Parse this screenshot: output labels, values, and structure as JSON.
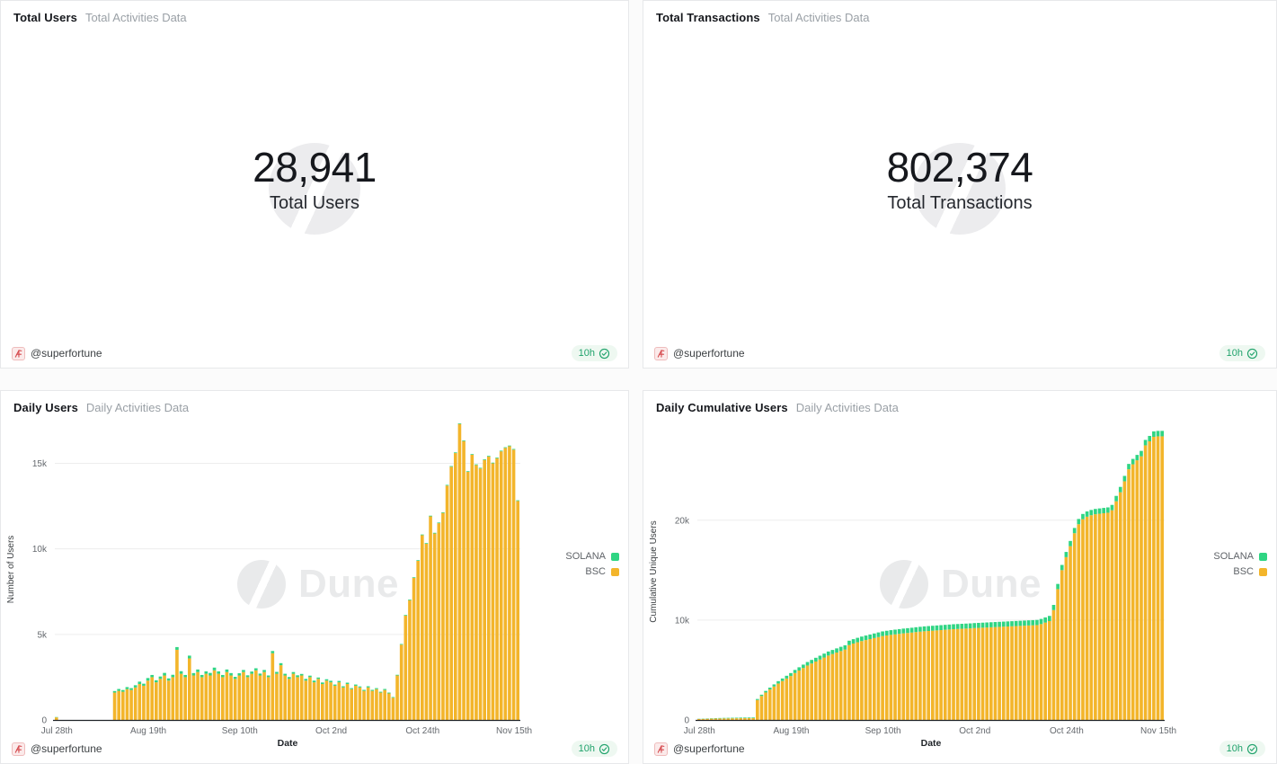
{
  "colors": {
    "bsc": "#F3B52B",
    "solana": "#2FD583",
    "badge_green": "#1FA26B",
    "gridline": "#EDEDED",
    "baseline": "#1F2328"
  },
  "watermark": {
    "text": "Dune"
  },
  "legend": [
    {
      "label": "SOLANA",
      "color": "#2FD583"
    },
    {
      "label": "BSC",
      "color": "#F3B52B"
    }
  ],
  "panels": {
    "total_users": {
      "title": "Total Users",
      "subtitle": "Total Activities Data",
      "value": "28,941",
      "value_label": "Total Users",
      "footer_user": "@superfortune",
      "badge": "10h"
    },
    "total_transactions": {
      "title": "Total Transactions",
      "subtitle": "Total Activities Data",
      "value": "802,374",
      "value_label": "Total Transactions",
      "footer_user": "@superfortune",
      "badge": "10h"
    },
    "daily_users": {
      "title": "Daily Users",
      "subtitle": "Daily Activities Data",
      "footer_user": "@superfortune",
      "badge": "10h"
    },
    "daily_cumulative": {
      "title": "Daily Cumulative Users",
      "subtitle": "Daily Activities Data",
      "footer_user": "@superfortune",
      "badge": "10h"
    }
  },
  "chart_data": [
    {
      "type": "counter",
      "title": "Total Users",
      "value": 28941
    },
    {
      "type": "counter",
      "title": "Total Transactions",
      "value": 802374
    },
    {
      "type": "bar",
      "stacked": true,
      "title": "Daily Users",
      "xlabel": "Date",
      "ylabel": "Number of Users",
      "yticks": [
        0,
        5000,
        10000,
        15000
      ],
      "ylim": [
        0,
        17600
      ],
      "grid": true,
      "legend_position": "right",
      "xtick_days": [
        0,
        22,
        44,
        66,
        88,
        110
      ],
      "xticklabels": [
        "Jul 28th",
        "Aug 19th",
        "Sep 10th",
        "Oct 2nd",
        "Oct 24th",
        "Nov 15th"
      ],
      "series": [
        {
          "name": "BSC",
          "values": [
            150,
            0,
            0,
            0,
            0,
            0,
            0,
            0,
            0,
            0,
            0,
            0,
            0,
            0,
            1600,
            1700,
            1650,
            1800,
            1750,
            1900,
            2100,
            2000,
            2300,
            2500,
            2200,
            2400,
            2600,
            2300,
            2500,
            4100,
            2700,
            2500,
            3600,
            2600,
            2800,
            2500,
            2700,
            2600,
            2900,
            2700,
            2500,
            2800,
            2600,
            2400,
            2600,
            2800,
            2500,
            2700,
            2900,
            2600,
            2800,
            2500,
            3900,
            2700,
            3200,
            2600,
            2400,
            2700,
            2500,
            2600,
            2300,
            2500,
            2200,
            2400,
            2100,
            2300,
            2200,
            2000,
            2200,
            1900,
            2100,
            1800,
            2000,
            1900,
            1700,
            1900,
            1700,
            1800,
            1600,
            1750,
            1550,
            1300,
            2600,
            4400,
            6100,
            7000,
            8300,
            9300,
            10800,
            10300,
            11900,
            10900,
            11500,
            12100,
            13700,
            14800,
            15600,
            17300,
            16300,
            14500,
            15500,
            14900,
            14700,
            15200,
            15400,
            15000,
            15300,
            15700,
            15900,
            16000,
            15800,
            12800
          ]
        },
        {
          "name": "SOLANA",
          "values": [
            20,
            0,
            0,
            0,
            0,
            0,
            0,
            0,
            0,
            0,
            0,
            0,
            0,
            0,
            90,
            110,
            100,
            120,
            110,
            130,
            140,
            120,
            150,
            130,
            120,
            140,
            150,
            130,
            140,
            160,
            150,
            130,
            160,
            140,
            150,
            130,
            140,
            150,
            160,
            140,
            130,
            150,
            140,
            120,
            130,
            120,
            110,
            130,
            120,
            110,
            120,
            100,
            130,
            110,
            120,
            100,
            110,
            100,
            110,
            90,
            100,
            90,
            100,
            80,
            90,
            80,
            90,
            70,
            80,
            70,
            80,
            60,
            70,
            60,
            60,
            70,
            60,
            60,
            50,
            60,
            50,
            40,
            40,
            40,
            40,
            40,
            40,
            40,
            40,
            40,
            40,
            40,
            40,
            40,
            40,
            40,
            40,
            40,
            40,
            40,
            40,
            40,
            40,
            40,
            40,
            40,
            40,
            40,
            40,
            40,
            40,
            40
          ]
        }
      ]
    },
    {
      "type": "bar",
      "stacked": true,
      "title": "Daily Cumulative Users",
      "xlabel": "Date",
      "ylabel": "Cumulative Unique Users",
      "yticks": [
        0,
        10000,
        20000
      ],
      "ylim": [
        0,
        29700
      ],
      "grid": true,
      "legend_position": "right",
      "xtick_days": [
        0,
        22,
        44,
        66,
        88,
        110
      ],
      "xticklabels": [
        "Jul 28th",
        "Aug 19th",
        "Sep 10th",
        "Oct 2nd",
        "Oct 24th",
        "Nov 15th"
      ],
      "series": [
        {
          "name": "BSC",
          "values": [
            100,
            110,
            120,
            130,
            140,
            150,
            155,
            160,
            165,
            170,
            175,
            180,
            185,
            190,
            2000,
            2400,
            2750,
            3050,
            3350,
            3650,
            3900,
            4150,
            4400,
            4700,
            4950,
            5200,
            5450,
            5650,
            5850,
            6050,
            6250,
            6450,
            6600,
            6750,
            6900,
            7050,
            7500,
            7650,
            7780,
            7900,
            8000,
            8100,
            8200,
            8300,
            8400,
            8460,
            8520,
            8570,
            8620,
            8670,
            8710,
            8750,
            8800,
            8840,
            8880,
            8910,
            8940,
            8970,
            9000,
            9030,
            9060,
            9090,
            9110,
            9130,
            9150,
            9170,
            9200,
            9220,
            9240,
            9260,
            9280,
            9300,
            9320,
            9340,
            9360,
            9380,
            9400,
            9420,
            9440,
            9460,
            9480,
            9500,
            9600,
            9750,
            9900,
            11000,
            13100,
            15000,
            16300,
            17400,
            18700,
            19600,
            20100,
            20350,
            20500,
            20600,
            20650,
            20700,
            20750,
            21000,
            21900,
            22800,
            23900,
            25100,
            25600,
            26000,
            26400,
            27500,
            27900,
            28350,
            28400,
            28400
          ]
        },
        {
          "name": "SOLANA",
          "values": [
            20,
            25,
            30,
            35,
            40,
            45,
            50,
            52,
            54,
            56,
            58,
            60,
            62,
            64,
            100,
            130,
            160,
            185,
            210,
            235,
            255,
            275,
            295,
            310,
            325,
            340,
            352,
            364,
            375,
            385,
            395,
            403,
            410,
            417,
            424,
            430,
            436,
            441,
            446,
            450,
            454,
            458,
            461,
            464,
            467,
            471,
            473,
            475,
            477,
            479,
            481,
            483,
            485,
            487,
            489,
            490,
            491,
            492,
            493,
            494,
            495,
            496,
            497,
            498,
            499,
            500,
            501,
            502,
            503,
            504,
            505,
            506,
            507,
            508,
            509,
            510,
            511,
            512,
            513,
            514,
            515,
            516,
            517,
            518,
            519,
            520,
            521,
            522,
            523,
            524,
            525,
            526,
            527,
            528,
            529,
            530,
            531,
            532,
            533,
            534,
            535,
            536,
            537,
            538,
            539,
            540,
            541,
            542,
            543,
            544,
            545,
            546
          ]
        }
      ]
    }
  ]
}
